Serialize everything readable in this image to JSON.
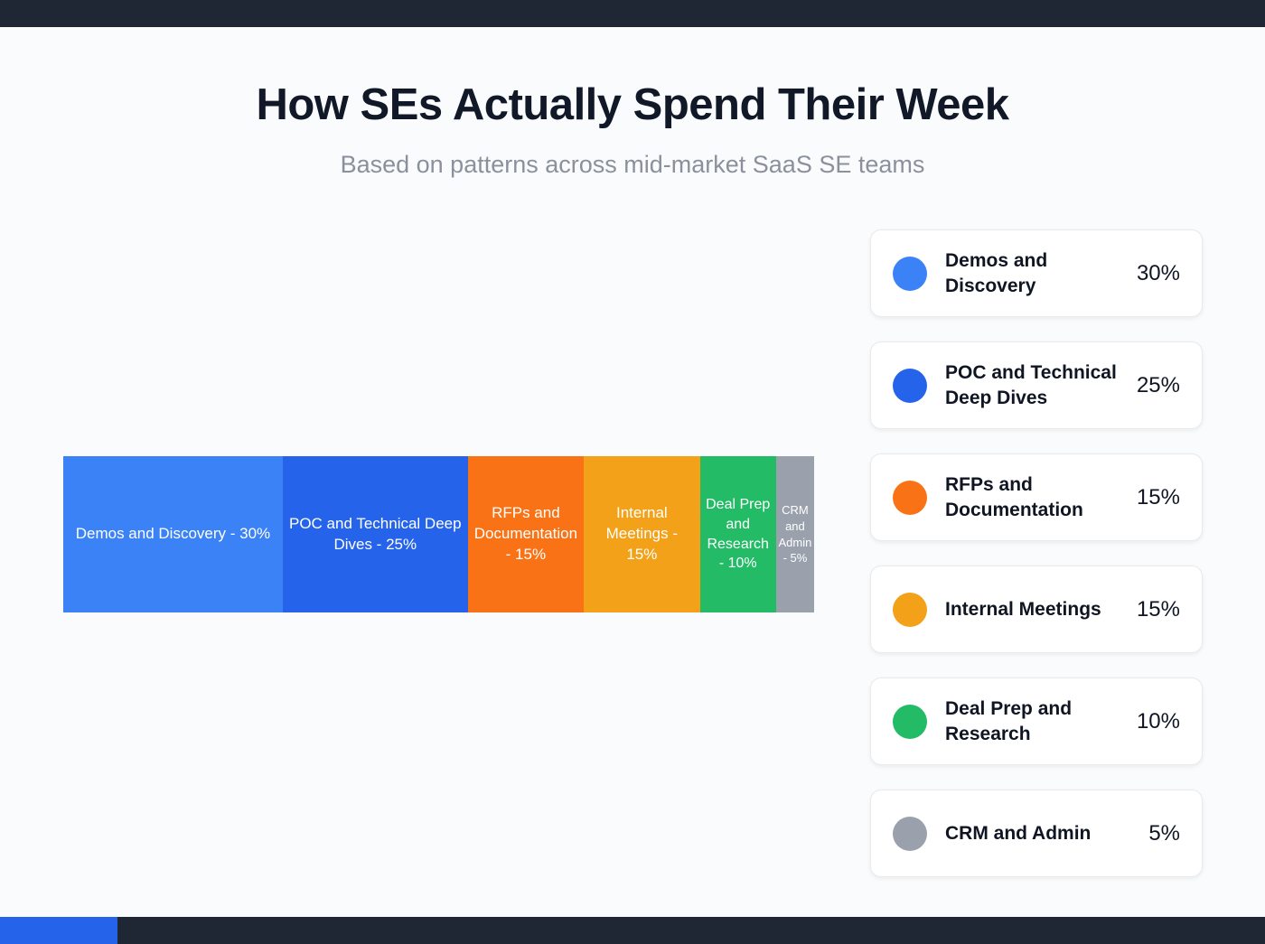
{
  "page": {
    "title": "How SEs Actually Spend Their Week",
    "subtitle": "Based on patterns across mid-market SaaS SE teams"
  },
  "chart_data": {
    "type": "bar",
    "variant": "horizontal-stacked",
    "title": "How SEs Actually Spend Their Week",
    "subtitle": "Based on patterns across mid-market SaaS SE teams",
    "unit": "%",
    "total": 100,
    "legend_position": "right",
    "grid": false,
    "categories": [
      "Demos and Discovery",
      "POC and Technical Deep Dives",
      "RFPs and Documentation",
      "Internal Meetings",
      "Deal Prep and Research",
      "CRM and Admin"
    ],
    "values": [
      30,
      25,
      15,
      15,
      10,
      5
    ],
    "segments": [
      {
        "category": "Demos and Discovery",
        "value": 30,
        "bar_label": "Demos and Discovery - 30%",
        "legend_label": "Demos and Discovery",
        "percent_label": "30%",
        "color": "#3b82f6"
      },
      {
        "category": "POC and Technical Deep Dives",
        "value": 25,
        "bar_label": "POC and Technical Deep Dives - 25%",
        "legend_label": "POC and Technical Deep Dives",
        "percent_label": "25%",
        "color": "#2563eb"
      },
      {
        "category": "RFPs and Documentation",
        "value": 15,
        "bar_label": "RFPs and Documentation - 15%",
        "legend_label": "RFPs and Documentation",
        "percent_label": "15%",
        "color": "#f97316"
      },
      {
        "category": "Internal Meetings",
        "value": 15,
        "bar_label": "Internal Meetings - 15%",
        "legend_label": "Internal Meetings",
        "percent_label": "15%",
        "color": "#f3a118"
      },
      {
        "category": "Deal Prep and Research",
        "value": 10,
        "bar_label": "Deal Prep and Research - 10%",
        "legend_label": "Deal Prep and Research",
        "percent_label": "10%",
        "color": "#23bb66"
      },
      {
        "category": "CRM and Admin",
        "value": 5,
        "bar_label": "CRM and Admin - 5%",
        "legend_label": "CRM and Admin",
        "percent_label": "5%",
        "color": "#9aa1ad"
      }
    ]
  },
  "frame": {
    "top_bar_color": "#202734",
    "bottom_bar_color": "#202734",
    "bottom_accent_color": "#2563eb"
  }
}
